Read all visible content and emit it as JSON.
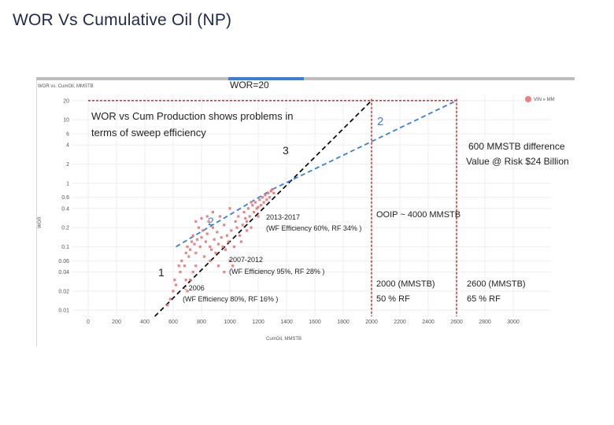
{
  "slide": {
    "title": "WOR Vs Cumulative Oil (NP)"
  },
  "chart_data": {
    "type": "scatter",
    "panel_title": "WOR vs. CumOil, MMSTB",
    "xlabel": "CumOil, MMSTB",
    "ylabel": "WOR",
    "x_log": false,
    "y_log": true,
    "xlim": [
      0,
      3000
    ],
    "ylim": [
      0.008,
      25
    ],
    "x_ticks": [
      "0",
      "200",
      "400",
      "600",
      "800",
      "1000",
      "1200",
      "1400",
      "1600",
      "1800",
      "2000",
      "2200",
      "2400",
      "2600",
      "2800",
      "3000"
    ],
    "y_ticks": [
      "0.01",
      "0.02",
      "0.04",
      "0.06",
      "0.1",
      "0.2",
      "0.4",
      "0.6",
      "1",
      "2",
      "4",
      "6",
      "10",
      "20"
    ],
    "legend": {
      "label": "VIN » MM",
      "color": "#f08080",
      "placement": "top-right"
    },
    "grid": true,
    "series": [
      {
        "marker_color": "#e07b7b",
        "points": [
          [
            560,
            0.012
          ],
          [
            580,
            0.015
          ],
          [
            600,
            0.02
          ],
          [
            610,
            0.03
          ],
          [
            620,
            0.025
          ],
          [
            640,
            0.05
          ],
          [
            650,
            0.04
          ],
          [
            660,
            0.06
          ],
          [
            680,
            0.05
          ],
          [
            690,
            0.08
          ],
          [
            700,
            0.1
          ],
          [
            710,
            0.07
          ],
          [
            720,
            0.09
          ],
          [
            730,
            0.12
          ],
          [
            740,
            0.15
          ],
          [
            750,
            0.11
          ],
          [
            760,
            0.08
          ],
          [
            770,
            0.13
          ],
          [
            780,
            0.2
          ],
          [
            790,
            0.1
          ],
          [
            800,
            0.14
          ],
          [
            810,
            0.18
          ],
          [
            820,
            0.07
          ],
          [
            830,
            0.12
          ],
          [
            840,
            0.16
          ],
          [
            850,
            0.25
          ],
          [
            860,
            0.1
          ],
          [
            870,
            0.09
          ],
          [
            880,
            0.2
          ],
          [
            890,
            0.13
          ],
          [
            900,
            0.08
          ],
          [
            910,
            0.17
          ],
          [
            920,
            0.11
          ],
          [
            930,
            0.3
          ],
          [
            940,
            0.14
          ],
          [
            950,
            0.1
          ],
          [
            960,
            0.22
          ],
          [
            970,
            0.09
          ],
          [
            980,
            0.15
          ],
          [
            990,
            0.12
          ],
          [
            1000,
            0.06
          ],
          [
            1010,
            0.18
          ],
          [
            1020,
            0.05
          ],
          [
            1030,
            0.1
          ],
          [
            1040,
            0.25
          ],
          [
            1050,
            0.2
          ],
          [
            1060,
            0.3
          ],
          [
            1070,
            0.15
          ],
          [
            1080,
            0.12
          ],
          [
            1090,
            0.22
          ],
          [
            1100,
            0.35
          ],
          [
            1110,
            0.28
          ],
          [
            1120,
            0.25
          ],
          [
            1130,
            0.4
          ],
          [
            1140,
            0.3
          ],
          [
            1150,
            0.2
          ],
          [
            1160,
            0.45
          ],
          [
            1170,
            0.35
          ],
          [
            1180,
            0.5
          ],
          [
            1190,
            0.4
          ],
          [
            1200,
            0.3
          ],
          [
            1210,
            0.55
          ],
          [
            1220,
            0.45
          ],
          [
            1230,
            0.6
          ],
          [
            1240,
            0.5
          ],
          [
            1250,
            0.65
          ],
          [
            1260,
            0.55
          ],
          [
            1270,
            0.7
          ],
          [
            1280,
            0.6
          ],
          [
            1290,
            0.75
          ],
          [
            1300,
            0.8
          ],
          [
            1310,
            0.7
          ],
          [
            720,
            0.03
          ],
          [
            740,
            0.04
          ],
          [
            760,
            0.05
          ],
          [
            690,
            0.03
          ],
          [
            700,
            0.02
          ],
          [
            860,
            0.06
          ],
          [
            920,
            0.05
          ],
          [
            960,
            0.04
          ],
          [
            880,
            0.35
          ],
          [
            840,
            0.3
          ],
          [
            800,
            0.28
          ],
          [
            760,
            0.25
          ],
          [
            1000,
            0.4
          ],
          [
            1150,
            0.5
          ],
          [
            1200,
            0.42
          ],
          [
            1120,
            0.18
          ]
        ]
      }
    ],
    "trend_lines": [
      {
        "label": "1",
        "style": "black-dashed",
        "from": [
          470,
          0.008
        ],
        "to": [
          2000,
          20
        ]
      },
      {
        "label": "2",
        "style": "blue-dashed",
        "from": [
          620,
          0.1
        ],
        "to": [
          1300,
          0.8
        ]
      },
      {
        "label": "2",
        "style": "blue-dashed",
        "from": [
          1300,
          0.8
        ],
        "to": [
          2600,
          20
        ]
      }
    ],
    "reference_lines": [
      {
        "orientation": "horizontal",
        "y": 20,
        "style": "red-dotted",
        "x_end": 2600
      },
      {
        "orientation": "vertical",
        "x": 2000,
        "style": "red-dotted"
      },
      {
        "orientation": "vertical",
        "x": 2600,
        "style": "red-dotted"
      }
    ],
    "annotations": {
      "wor_line": "WOR=20",
      "headline_1": "WOR vs Cum Production shows problems in",
      "headline_2": "terms of sweep efficiency",
      "label_3": "3",
      "label_2_upper": "2",
      "label_2_lower": "2",
      "label_1": "1",
      "period_2013_1": "2013-2017",
      "period_2013_2": "(WF Efficiency 60%, RF 34% )",
      "period_2007_1": "2007-2012",
      "period_2007_2": "(WF Efficiency 95%, RF 28% )",
      "period_2006_1": "< 2006",
      "period_2006_2": "(WF Efficiency 80%, RF 16% )",
      "ooip": "OOIP ~ 4000 MMSTB",
      "diff_1": "600 MMSTB difference",
      "diff_2": "Value @ Risk $24 Billion",
      "rf50_1": "2000 (MMSTB)",
      "rf50_2": "50 % RF",
      "rf65_1": "2600 (MMSTB)",
      "rf65_2": "65 % RF"
    }
  }
}
